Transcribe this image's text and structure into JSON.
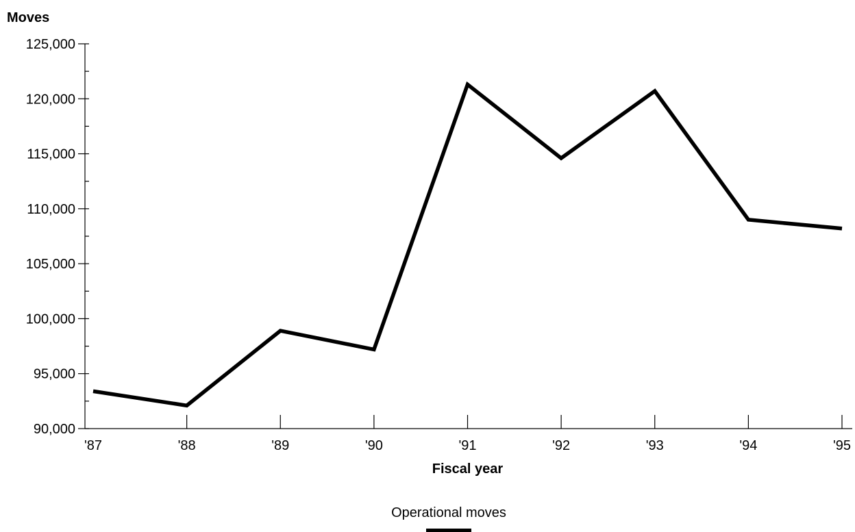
{
  "chart_data": {
    "type": "line",
    "title": "",
    "ylabel": "Moves",
    "xlabel": "Fiscal year",
    "categories": [
      "'87",
      "'88",
      "'89",
      "'90",
      "'91",
      "'92",
      "'93",
      "'94",
      "'95"
    ],
    "series": [
      {
        "name": "Operational moves",
        "values": [
          93400,
          92100,
          98900,
          97200,
          121300,
          114600,
          120700,
          109000,
          108200
        ]
      }
    ],
    "ylim": [
      90000,
      125000
    ],
    "yticks": [
      90000,
      95000,
      100000,
      105000,
      110000,
      115000,
      120000,
      125000
    ],
    "ytick_labels": [
      "90,000",
      "95,000",
      "100,000",
      "105,000",
      "110,000",
      "115,000",
      "120,000",
      "125,000"
    ],
    "grid": false,
    "legend_position": "bottom-center",
    "line_color": "#000000"
  }
}
